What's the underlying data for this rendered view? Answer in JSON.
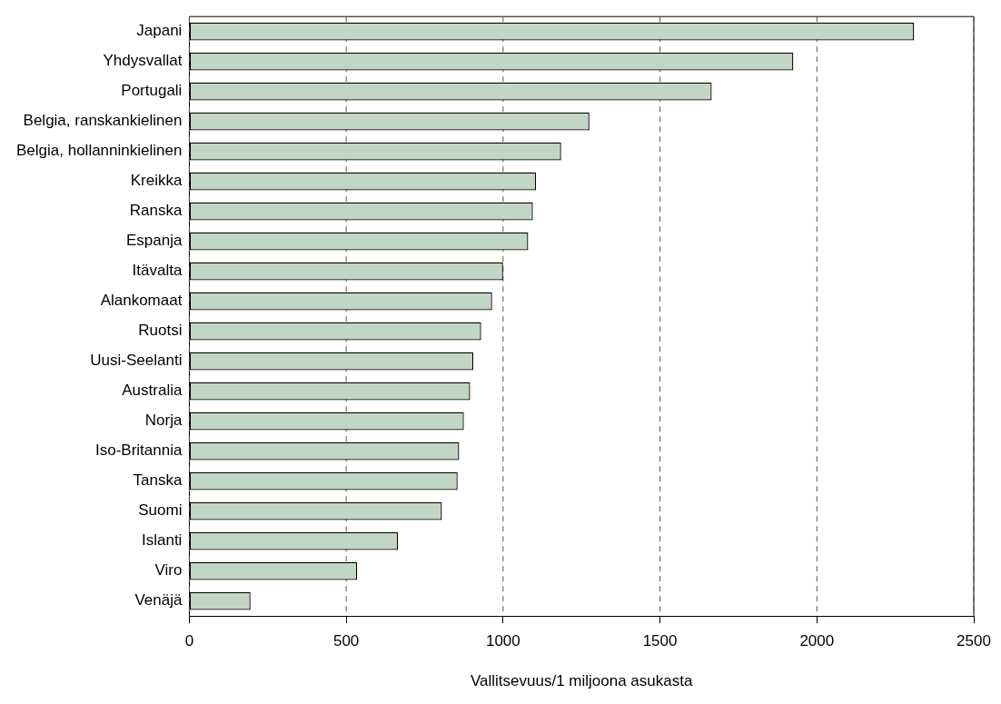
{
  "chart_data": {
    "type": "bar",
    "orientation": "horizontal",
    "xlabel": "Vallitsevuus/1 miljoona asukasta",
    "categories": [
      "Japani",
      "Yhdysvallat",
      "Portugali",
      "Belgia, ranskankielinen",
      "Belgia, hollanninkielinen",
      "Kreikka",
      "Ranska",
      "Espanja",
      "Itävalta",
      "Alankomaat",
      "Ruotsi",
      "Uusi-Seelanti",
      "Australia",
      "Norja",
      "Iso-Britannia",
      "Tanska",
      "Suomi",
      "Islanti",
      "Viro",
      "Venäjä"
    ],
    "values": [
      2310,
      1925,
      1665,
      1275,
      1185,
      1105,
      1095,
      1080,
      1000,
      965,
      930,
      905,
      895,
      875,
      860,
      855,
      805,
      665,
      535,
      195
    ],
    "color": "#c2d6c4",
    "xlim": [
      0,
      2500
    ],
    "xticks": [
      0,
      500,
      1000,
      1500,
      2000,
      2500
    ],
    "grid": "x",
    "line_style": "dashed",
    "legend": false
  }
}
